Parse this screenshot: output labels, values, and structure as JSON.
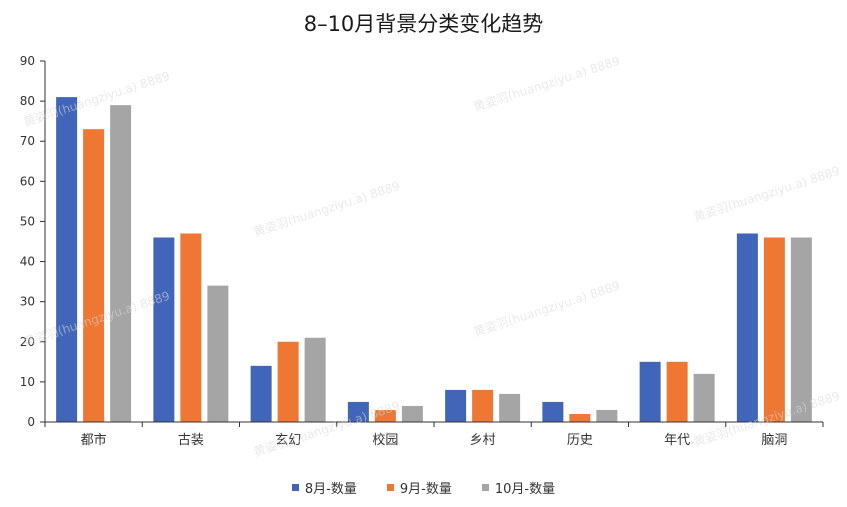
{
  "chart_data": {
    "type": "bar",
    "title": "8–10月背景分类变化趋势",
    "categories": [
      "都市",
      "古装",
      "玄幻",
      "校园",
      "乡村",
      "历史",
      "年代",
      "脑洞"
    ],
    "series": [
      {
        "name": "8月-数量",
        "color": "#4166B9",
        "values": [
          81,
          46,
          14,
          5,
          8,
          5,
          15,
          47
        ]
      },
      {
        "name": "9月-数量",
        "color": "#EE7733",
        "values": [
          73,
          47,
          20,
          3,
          8,
          2,
          15,
          46
        ]
      },
      {
        "name": "10月-数量",
        "color": "#A5A5A5",
        "values": [
          79,
          34,
          21,
          4,
          7,
          3,
          12,
          46
        ]
      }
    ],
    "ylim": [
      0,
      90
    ],
    "yticks": [
      0,
      10,
      20,
      30,
      40,
      50,
      60,
      70,
      80,
      90
    ],
    "xlabel": "",
    "ylabel": "",
    "grid": false,
    "legend_position": "bottom"
  },
  "watermark": "黄姿羽(huangziyu.a) 8889"
}
